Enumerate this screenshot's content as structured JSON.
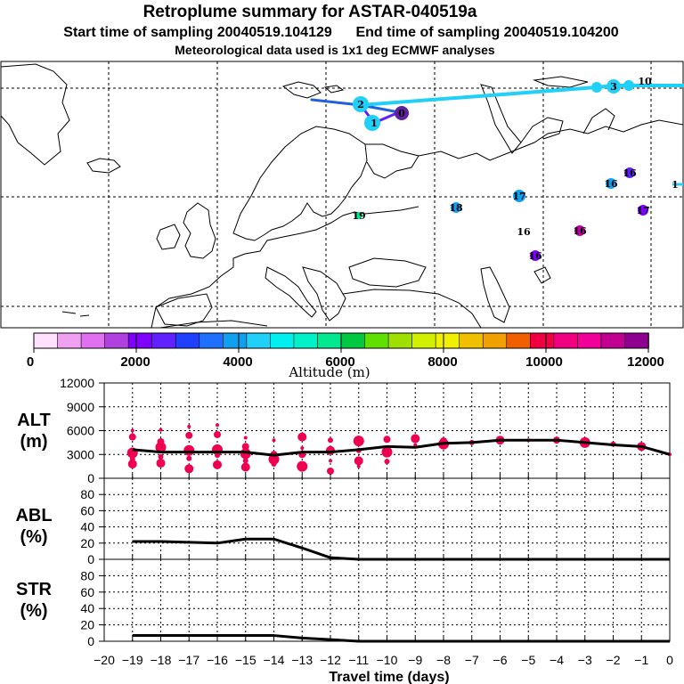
{
  "header": {
    "title": "Retroplume summary for ASTAR-040519a",
    "subtitle": "Start time of sampling 20040519.104129      End time of sampling 20040519.104200",
    "meteo": "Meteorological data used is 1x1 deg ECMWF analyses"
  },
  "colorbar": {
    "label": "Altitude (m)",
    "tick_labels": [
      "0",
      "2000",
      "4000",
      "6000",
      "8000",
      "10000",
      "12000"
    ],
    "colors": [
      "#ffe0ff",
      "#f0a0f0",
      "#e070f0",
      "#b040e0",
      "#8000ff",
      "#6020ff",
      "#2040ff",
      "#2070ff",
      "#10a0f0",
      "#20d0f8",
      "#00f0f0",
      "#00f0c8",
      "#00e890",
      "#00c840",
      "#60e000",
      "#a0e000",
      "#d0f000",
      "#f0f000",
      "#f0c000",
      "#f0a000",
      "#f06000",
      "#f00040",
      "#f00080",
      "#f00098",
      "#c00090",
      "#900090"
    ]
  },
  "map": {
    "labels": [
      "0",
      "1",
      "2",
      "3",
      "10",
      "16",
      "16",
      "16",
      "16",
      "16",
      "17",
      "17",
      "18",
      "19",
      "1"
    ]
  },
  "chart_data": [
    {
      "type": "line",
      "panel": "ALT",
      "ylabel": "ALT\n(m)",
      "ylabel_lines": [
        "ALT",
        "(m)"
      ],
      "ylim": [
        0,
        12000
      ],
      "yticks": [
        0,
        3000,
        6000,
        9000,
        12000
      ],
      "ytick_labels": [
        "0",
        "3000",
        "6000",
        "9000",
        "12000"
      ],
      "xlim": [
        -20,
        0
      ],
      "series": [
        {
          "name": "mean altitude",
          "x": [
            -19,
            -18,
            -17,
            -16,
            -15,
            -14,
            -13,
            -12,
            -11,
            -10,
            -9,
            -8,
            -7,
            -6,
            -5,
            -4,
            -3,
            -2,
            -1,
            0
          ],
          "values": [
            3600,
            3300,
            3300,
            3300,
            3300,
            2900,
            3300,
            3300,
            3600,
            4000,
            3900,
            4400,
            4500,
            4800,
            4800,
            4800,
            4500,
            4200,
            4000,
            3000
          ]
        },
        {
          "name": "cluster altitudes",
          "points": [
            [
              -19,
              6000
            ],
            [
              -19,
              5200
            ],
            [
              -19,
              3200
            ],
            [
              -19,
              2400
            ],
            [
              -19,
              1800
            ],
            [
              -18,
              6100
            ],
            [
              -18,
              4600
            ],
            [
              -18,
              3900
            ],
            [
              -18,
              2700
            ],
            [
              -18,
              1900
            ],
            [
              -17,
              6500
            ],
            [
              -17,
              5400
            ],
            [
              -17,
              3500
            ],
            [
              -17,
              2500
            ],
            [
              -17,
              1200
            ],
            [
              -16,
              6700
            ],
            [
              -16,
              5500
            ],
            [
              -16,
              3600
            ],
            [
              -16,
              2900
            ],
            [
              -16,
              1700
            ],
            [
              -15,
              5100
            ],
            [
              -15,
              4000
            ],
            [
              -15,
              3100
            ],
            [
              -15,
              2200
            ],
            [
              -15,
              1400
            ],
            [
              -14,
              4800
            ],
            [
              -14,
              3000
            ],
            [
              -14,
              2400
            ],
            [
              -14,
              1800
            ],
            [
              -13,
              5200
            ],
            [
              -13,
              3800
            ],
            [
              -13,
              3000
            ],
            [
              -13,
              1500
            ],
            [
              -12,
              4800
            ],
            [
              -12,
              3500
            ],
            [
              -12,
              2200
            ],
            [
              -12,
              900
            ],
            [
              -11,
              4700
            ],
            [
              -11,
              3500
            ],
            [
              -11,
              2200
            ],
            [
              -11,
              1500
            ],
            [
              -10,
              4900
            ],
            [
              -10,
              3300
            ],
            [
              -10,
              2100
            ],
            [
              -9,
              5000
            ],
            [
              -9,
              4200
            ],
            [
              -8,
              4700
            ],
            [
              -8,
              4300
            ],
            [
              -7,
              4500
            ],
            [
              -6,
              4800
            ],
            [
              -5,
              4800
            ],
            [
              -4,
              4800
            ],
            [
              -3,
              4500
            ],
            [
              -2,
              4300
            ],
            [
              -1,
              4000
            ],
            [
              0,
              3000
            ]
          ]
        }
      ]
    },
    {
      "type": "line",
      "panel": "ABL",
      "ylabel": "ABL\n(%)",
      "ylabel_lines": [
        "ABL",
        "(%)"
      ],
      "ylim": [
        0,
        100
      ],
      "yticks": [
        0,
        20,
        40,
        60,
        80
      ],
      "ytick_labels": [
        "0",
        "20",
        "40",
        "60",
        "80"
      ],
      "xlim": [
        -20,
        0
      ],
      "series": [
        {
          "name": "ABL fraction",
          "x": [
            -19,
            -18,
            -17,
            -16,
            -15,
            -14,
            -13,
            -12,
            -11,
            -10,
            -9,
            -8,
            -7,
            -6,
            -5,
            -4,
            -3,
            -2,
            -1,
            0
          ],
          "values": [
            22,
            22,
            21,
            20,
            25,
            25,
            14,
            2,
            0,
            0,
            0,
            0,
            0,
            0,
            0,
            0,
            0,
            0,
            0,
            0
          ]
        }
      ]
    },
    {
      "type": "line",
      "panel": "STR",
      "ylabel": "STR\n(%)",
      "ylabel_lines": [
        "STR",
        "(%)"
      ],
      "ylim": [
        0,
        100
      ],
      "yticks": [
        0,
        20,
        40,
        60,
        80
      ],
      "ytick_labels": [
        "0",
        "20",
        "40",
        "60",
        "80"
      ],
      "xlim": [
        -20,
        0
      ],
      "xlabel": "Travel time (days)",
      "xticks": [
        -20,
        -19,
        -18,
        -17,
        -16,
        -15,
        -14,
        -13,
        -12,
        -11,
        -10,
        -9,
        -8,
        -7,
        -6,
        -5,
        -4,
        -3,
        -2,
        -1,
        0
      ],
      "xtick_labels": [
        "−20",
        "−19",
        "−18",
        "−17",
        "−16",
        "−15",
        "−14",
        "−13",
        "−12",
        "−11",
        "−10",
        "−9",
        "−8",
        "−7",
        "−6",
        "−5",
        "−4",
        "−3",
        "−2",
        "−1",
        "0"
      ],
      "series": [
        {
          "name": "STR fraction",
          "x": [
            -19,
            -18,
            -17,
            -16,
            -15,
            -14,
            -13,
            -12,
            -11,
            -10,
            -9,
            -8,
            -7,
            -6,
            -5,
            -4,
            -3,
            -2,
            -1,
            0
          ],
          "values": [
            7,
            7,
            7,
            7,
            7,
            7,
            4,
            2,
            0,
            0,
            0,
            0,
            0,
            0,
            0,
            0,
            0,
            0,
            0,
            0
          ]
        }
      ]
    }
  ]
}
